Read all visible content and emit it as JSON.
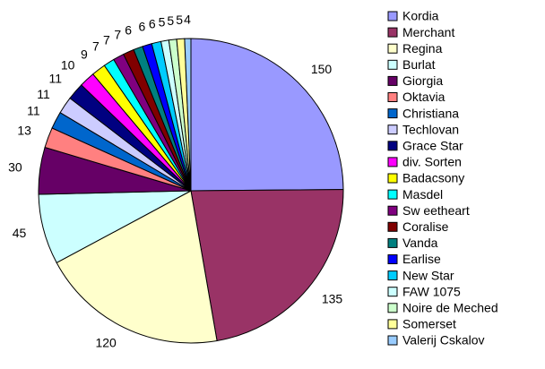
{
  "chart_data": {
    "type": "pie",
    "categories": [
      "Kordia",
      "Merchant",
      "Regina",
      "Burlat",
      "Giorgia",
      "Oktavia",
      "Christiana",
      "Techlovan",
      "Grace Star",
      "div. Sorten",
      "Badacsony",
      "Masdel",
      "Sw eetheart",
      "Coralise",
      "Vanda",
      "Earlise",
      "New Star",
      "FAW 1075",
      "Noire de Meched",
      "Somerset",
      "Valerij Cskalov"
    ],
    "values": [
      150,
      135,
      120,
      45,
      30,
      13,
      11,
      11,
      11,
      10,
      9,
      7,
      7,
      7,
      6,
      6,
      6,
      5,
      5,
      5,
      4
    ],
    "colors": [
      "#9999ff",
      "#993366",
      "#ffffcc",
      "#ccffff",
      "#660066",
      "#ff8080",
      "#0066cc",
      "#ccccff",
      "#000080",
      "#ff00ff",
      "#ffff00",
      "#00ffff",
      "#800080",
      "#800000",
      "#008080",
      "#0000ff",
      "#00ccff",
      "#ccffff",
      "#ccffcc",
      "#ffff99",
      "#99ccff"
    ],
    "legend": "right"
  }
}
